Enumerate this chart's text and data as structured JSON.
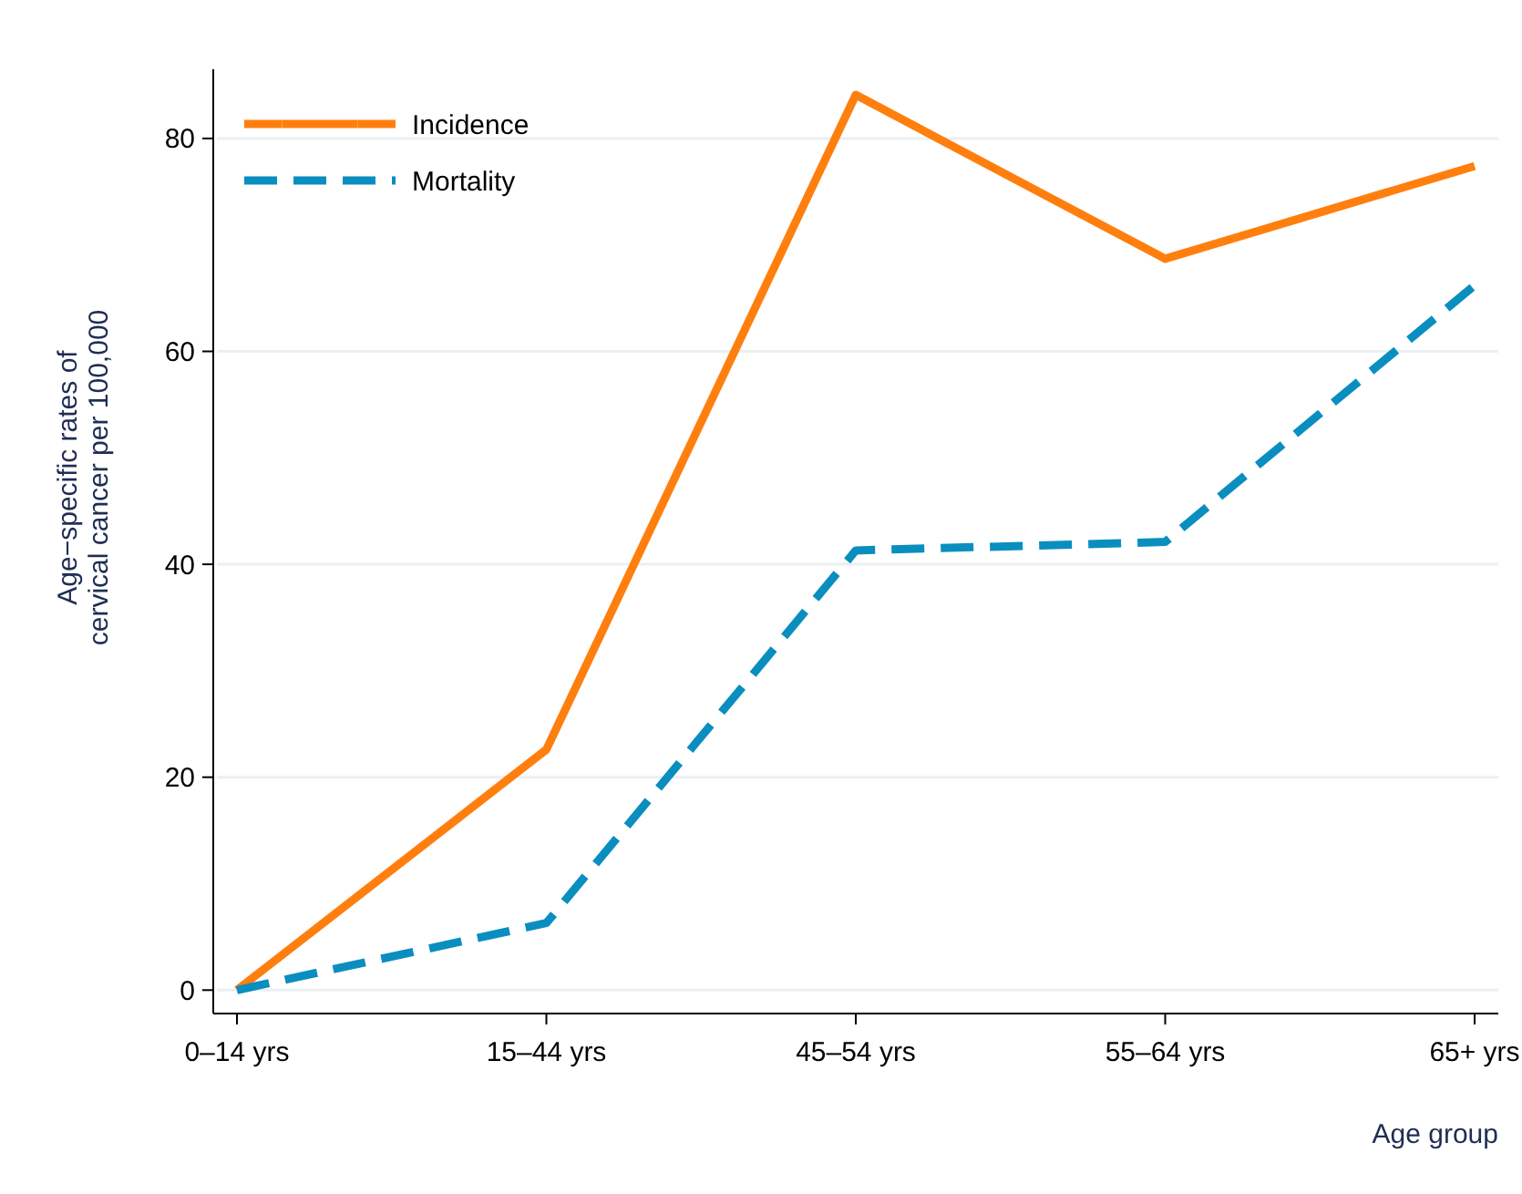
{
  "chart_data": {
    "type": "line",
    "xlabel": "Age group",
    "ylabel": "Age−specific rates of\ncervical cancer per 100,000",
    "categories": [
      "0–14 yrs",
      "15–44 yrs",
      "45–54 yrs",
      "55–64 yrs",
      "65+ yrs"
    ],
    "series": [
      {
        "name": "Incidence",
        "color": "#ff7f0e",
        "line_style": "solid",
        "values": [
          0,
          22.6,
          84.1,
          68.7,
          77.4
        ]
      },
      {
        "name": "Mortality",
        "color": "#0a8ebf",
        "line_style": "dashed",
        "values": [
          0,
          6.3,
          41.3,
          42.1,
          66.2
        ]
      }
    ],
    "ylim": [
      -2.2,
      86.5
    ],
    "yticks": [
      0,
      20,
      40,
      60,
      80
    ],
    "grid": "y",
    "legend": "top left",
    "marker": "none"
  }
}
